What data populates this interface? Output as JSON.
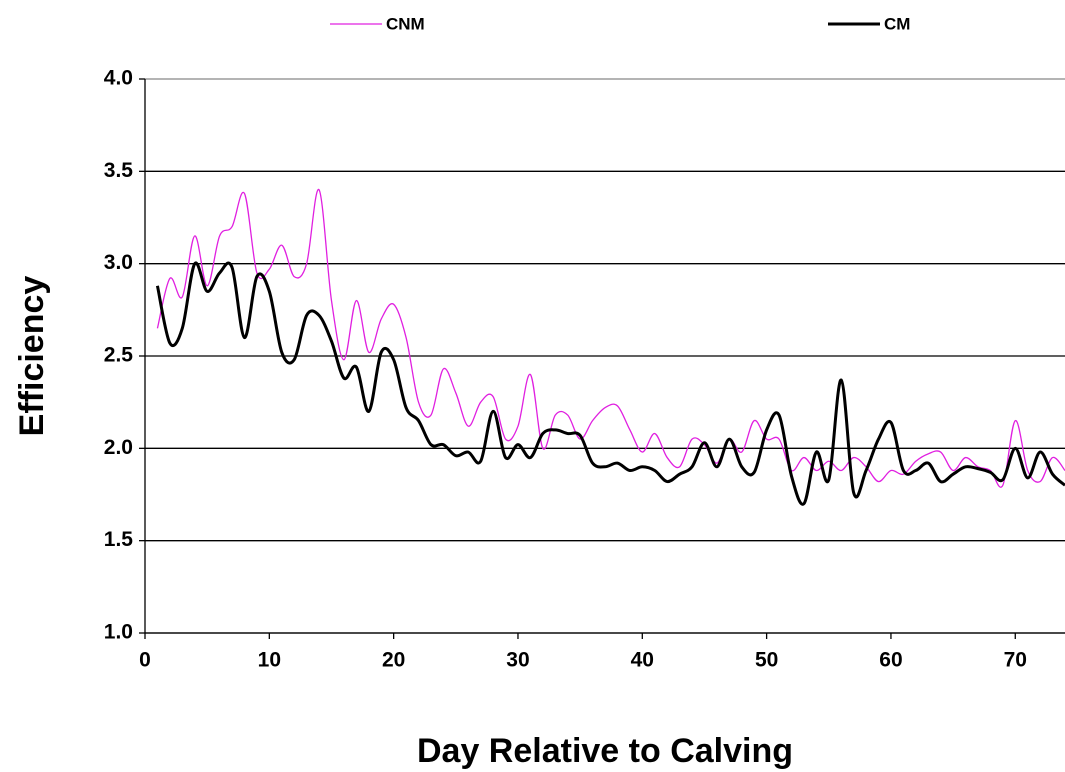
{
  "chart_data": {
    "type": "line",
    "xlabel": "Day Relative to Calving",
    "ylabel": "Efficiency",
    "x": [
      1,
      2,
      3,
      4,
      5,
      6,
      7,
      8,
      9,
      10,
      11,
      12,
      13,
      14,
      15,
      16,
      17,
      18,
      19,
      20,
      21,
      22,
      23,
      24,
      25,
      26,
      27,
      28,
      29,
      30,
      31,
      32,
      33,
      34,
      35,
      36,
      37,
      38,
      39,
      40,
      41,
      42,
      43,
      44,
      45,
      46,
      47,
      48,
      49,
      50,
      51,
      52,
      53,
      54,
      55,
      56,
      57,
      58,
      59,
      60,
      61,
      62,
      63,
      64,
      65,
      66,
      67,
      68,
      69,
      70,
      71,
      72,
      73,
      74
    ],
    "series": [
      {
        "name": "CNM",
        "color": "#e020e0",
        "width": 1.3,
        "values": [
          2.65,
          2.92,
          2.82,
          3.15,
          2.88,
          3.15,
          3.2,
          3.38,
          2.95,
          2.97,
          3.1,
          2.93,
          3.0,
          3.4,
          2.8,
          2.48,
          2.8,
          2.52,
          2.7,
          2.78,
          2.6,
          2.25,
          2.18,
          2.43,
          2.3,
          2.12,
          2.25,
          2.28,
          2.05,
          2.12,
          2.4,
          2.0,
          2.18,
          2.18,
          2.05,
          2.15,
          2.22,
          2.23,
          2.1,
          1.98,
          2.08,
          1.95,
          1.9,
          2.05,
          2.02,
          1.92,
          2.05,
          1.98,
          2.15,
          2.05,
          2.05,
          1.88,
          1.95,
          1.88,
          1.93,
          1.88,
          1.95,
          1.9,
          1.82,
          1.88,
          1.86,
          1.93,
          1.97,
          1.98,
          1.88,
          1.95,
          1.9,
          1.88,
          1.8,
          2.15,
          1.88,
          1.82,
          1.95,
          1.88
        ]
      },
      {
        "name": "CM",
        "color": "#000000",
        "width": 3,
        "values": [
          2.88,
          2.57,
          2.65,
          3.0,
          2.85,
          2.95,
          2.98,
          2.6,
          2.93,
          2.85,
          2.52,
          2.48,
          2.72,
          2.72,
          2.58,
          2.38,
          2.44,
          2.2,
          2.52,
          2.48,
          2.22,
          2.15,
          2.02,
          2.02,
          1.96,
          1.98,
          1.93,
          2.2,
          1.95,
          2.02,
          1.95,
          2.08,
          2.1,
          2.08,
          2.07,
          1.92,
          1.9,
          1.92,
          1.88,
          1.9,
          1.88,
          1.82,
          1.86,
          1.9,
          2.03,
          1.9,
          2.05,
          1.9,
          1.87,
          2.1,
          2.18,
          1.85,
          1.7,
          1.98,
          1.83,
          2.37,
          1.76,
          1.88,
          2.05,
          2.14,
          1.88,
          1.88,
          1.92,
          1.82,
          1.86,
          1.9,
          1.89,
          1.87,
          1.83,
          2.0,
          1.84,
          1.98,
          1.86,
          1.8
        ]
      }
    ],
    "xlim": [
      0,
      74
    ],
    "xticks": [
      0,
      10,
      20,
      30,
      40,
      50,
      60,
      70
    ],
    "ylim": [
      1,
      4
    ],
    "yticks": [
      {
        "value": 1,
        "label": "1.0"
      },
      1.5,
      {
        "value": 2,
        "label": "2.0"
      },
      2.5,
      {
        "value": 3,
        "label": "3.0"
      },
      3.5,
      {
        "value": 4,
        "label": "4.0"
      }
    ],
    "grid": true,
    "legend": "top"
  }
}
